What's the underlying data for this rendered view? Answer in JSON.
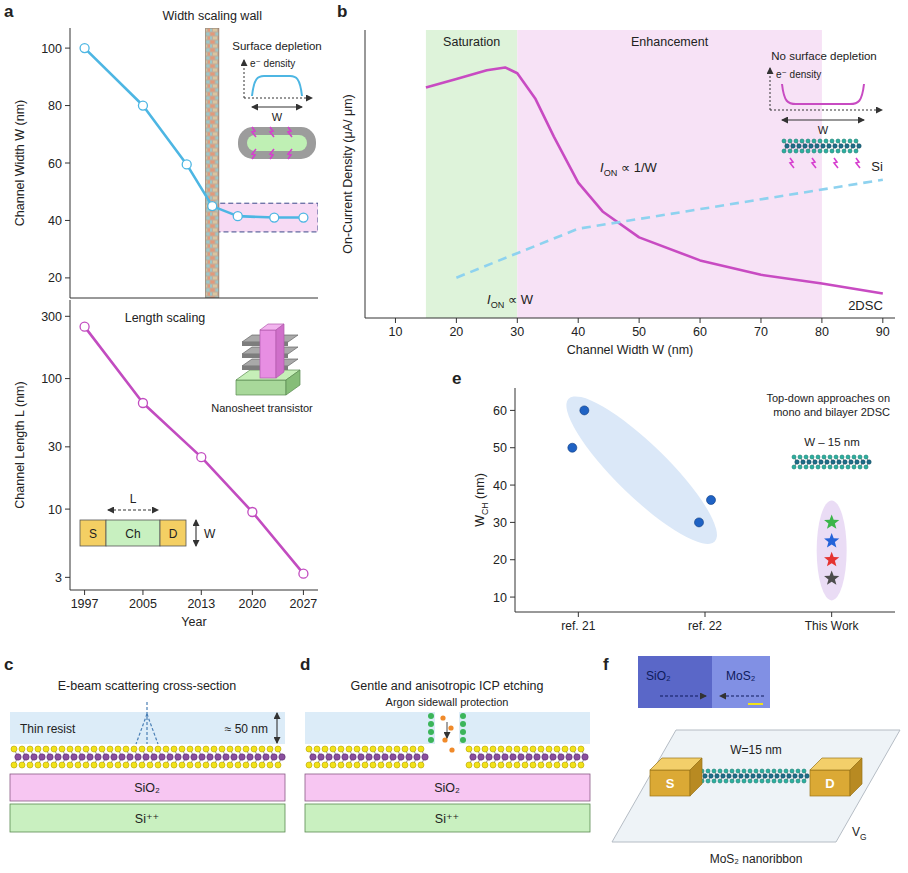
{
  "panel_letters": [
    "a",
    "b",
    "c",
    "d",
    "e",
    "f"
  ],
  "chart_data": [
    {
      "type": "line",
      "title": "Width scaling wall",
      "y_label": "Channel Width W (nm)",
      "x": [
        1997,
        2005,
        2011,
        2014.5,
        2018,
        2023,
        2027
      ],
      "series": [
        {
          "color": "#4db6e3",
          "marker": "circle",
          "values": [
            100,
            80,
            59.5,
            45,
            41.5,
            41,
            41
          ]
        }
      ],
      "xlim": [
        1995,
        2029
      ],
      "ylim": [
        13,
        107
      ],
      "yticks": [
        20,
        40,
        60,
        80,
        100
      ],
      "tick_labels": "y",
      "wall": [
        2013.6,
        2015.4
      ],
      "band": {
        "x": [
          2014.5,
          2029
        ],
        "y": [
          36,
          46
        ]
      },
      "inset": {
        "title": "Surface depletion",
        "y_label": "e⁻ density",
        "x_label": "W"
      }
    },
    {
      "type": "line",
      "title": "Length scaling",
      "x_label": "Year",
      "y_label": "Channel Length L (nm)",
      "x": [
        1997,
        2005,
        2013,
        2020,
        2027
      ],
      "series": [
        {
          "color": "#c24cc0",
          "marker": "circle",
          "values": [
            250,
            65,
            25,
            9.5,
            3.2
          ]
        }
      ],
      "xlim": [
        1995,
        2029
      ],
      "ylim": [
        2.4,
        400
      ],
      "log": "y",
      "xticks": [
        1997,
        2005,
        2013,
        2020,
        2027
      ],
      "yticks": [
        3,
        10,
        30,
        100,
        300
      ],
      "inset": {
        "source": "S",
        "channel": "Ch",
        "drain": "D",
        "length": "L",
        "width": "W",
        "device": "Nanosheet transistor"
      }
    },
    {
      "type": "line",
      "x_label": "Channel Width W (nm)",
      "y_label": "On-Current Density (μA/ μm)",
      "xlim": [
        5,
        92
      ],
      "ylim": [
        0,
        100
      ],
      "xticks": [
        10,
        20,
        30,
        40,
        50,
        60,
        70,
        80,
        90
      ],
      "tick_labels": "x",
      "regions": [
        {
          "label": "Saturation",
          "x": [
            15,
            30
          ],
          "color": "#def3da"
        },
        {
          "label": "Enhancement",
          "x": [
            30,
            80
          ],
          "color": "#f7e2f6"
        }
      ],
      "series": [
        {
          "name": "2DSC",
          "color": "#c84bc2",
          "line_style": "solid",
          "x": [
            15,
            20,
            25,
            28,
            30,
            33,
            36,
            40,
            44,
            50,
            60,
            70,
            80,
            90
          ],
          "values": [
            80,
            83,
            86,
            87,
            85,
            76,
            63,
            47,
            37,
            28,
            20,
            15,
            12,
            8.5
          ]
        },
        {
          "name": "Si",
          "color": "#8ed2ef",
          "line_style": "dashed",
          "x": [
            20,
            40,
            90
          ],
          "values": [
            14,
            31,
            48
          ]
        }
      ],
      "annotations": [
        {
          "base": "I",
          "sub": "ON",
          "rest": " ∝ 1/W"
        },
        {
          "base": "I",
          "sub": "ON",
          "rest": " ∝ W"
        }
      ],
      "inset": {
        "title": "No surface depletion",
        "y_label": "e⁻ density",
        "x_label": "W"
      }
    },
    {
      "type": "scatter",
      "title": "Top-down approaches on mono and bilayer 2DSC",
      "annotation": "W – 15 nm",
      "y_label": {
        "base": "W",
        "sub": "CH",
        "rest": " (nm)"
      },
      "categories": [
        "ref. 21",
        "ref. 22",
        "This Work"
      ],
      "ylim": [
        6,
        66
      ],
      "yticks": [
        10,
        20,
        30,
        40,
        50,
        60
      ],
      "series": [
        {
          "color": "#1f62c4",
          "marker": "circle",
          "x": [
            "ref. 21",
            "ref. 21",
            "ref. 22",
            "ref. 22"
          ],
          "values": [
            60,
            50,
            36,
            30
          ]
        },
        {
          "marker": "star",
          "x": [
            "This Work",
            "This Work",
            "This Work",
            "This Work"
          ],
          "values": [
            30,
            25,
            20,
            15
          ],
          "colors": [
            "#3bb54a",
            "#2563d9",
            "#e53331",
            "#4d4d4d"
          ]
        }
      ]
    }
  ],
  "diagrams": {
    "c": {
      "title": "E-beam scattering cross-section",
      "resist": "Thin resist",
      "thickness": "≈ 50 nm",
      "oxide": "SiO₂",
      "substrate": "Si⁺⁺"
    },
    "d": {
      "title": "Gentle and anisotropic ICP etching",
      "annotation": "Argon sidewall protection",
      "oxide": "SiO₂",
      "substrate": "Si⁺⁺"
    },
    "f": {
      "image_labels": [
        "SiO₂",
        "MoS₂"
      ],
      "width": "W=15 nm",
      "source": "S",
      "drain": "D",
      "gate": {
        "base": "V",
        "sub": "G"
      },
      "caption": "MoS₂ nanoribbon"
    }
  }
}
